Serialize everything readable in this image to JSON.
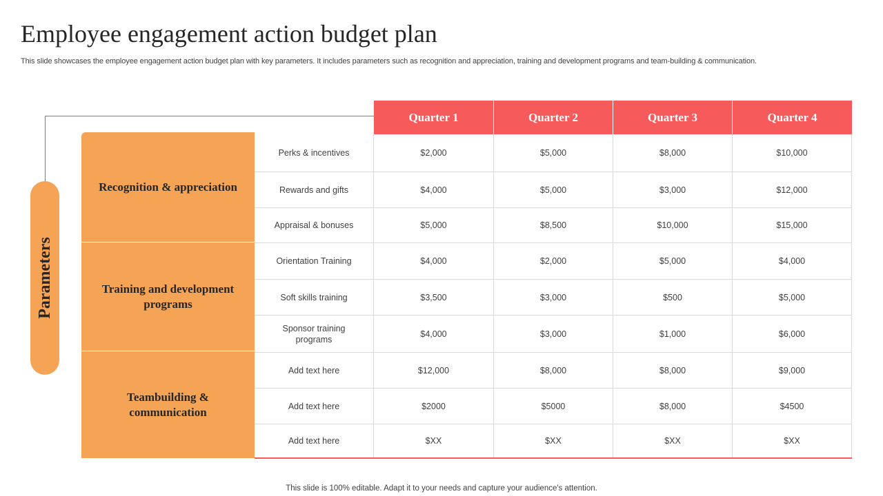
{
  "title": "Employee engagement action budget plan",
  "subtitle": "This slide showcases the employee engagement action budget plan with key parameters. It includes parameters such as  recognition and appreciation, training and development programs and team-building & communication.",
  "side_label": "Parameters",
  "quarters": [
    "Quarter 1",
    "Quarter 2",
    "Quarter 3",
    "Quarter 4"
  ],
  "groups": [
    {
      "label": "Recognition & appreciation"
    },
    {
      "label": "Training and development programs"
    },
    {
      "label": "Teambuilding & communication"
    }
  ],
  "rows": [
    {
      "param": "Perks & incentives",
      "values": [
        "$2,000",
        "$5,000",
        "$8,000",
        "$10,000"
      ]
    },
    {
      "param": "Rewards  and gifts",
      "values": [
        "$4,000",
        "$5,000",
        "$3,000",
        "$12,000"
      ]
    },
    {
      "param": "Appraisal  & bonuses",
      "values": [
        "$5,000",
        "$8,500",
        "$10,000",
        "$15,000"
      ]
    },
    {
      "param": "Orientation Training",
      "values": [
        "$4,000",
        "$2,000",
        "$5,000",
        "$4,000"
      ]
    },
    {
      "param": "Soft skills training",
      "values": [
        "$3,500",
        "$3,000",
        "$500",
        "$5,000"
      ]
    },
    {
      "param": "Sponsor training programs",
      "values": [
        "$4,000",
        "$3,000",
        "$1,000",
        "$6,000"
      ]
    },
    {
      "param": "Add text here",
      "values": [
        "$12,000",
        "$8,000",
        "$8,000",
        "$9,000"
      ]
    },
    {
      "param": "Add text here",
      "values": [
        "$2000",
        "$5000",
        "$8,000",
        "$4500"
      ]
    },
    {
      "param": "Add text here",
      "values": [
        "$XX",
        "$XX",
        "$XX",
        "$XX"
      ]
    }
  ],
  "footer": "This slide is 100% editable. Adapt it to your needs and capture your audience's attention.",
  "colors": {
    "header": "#f65a5a",
    "group": "#f5a455"
  }
}
